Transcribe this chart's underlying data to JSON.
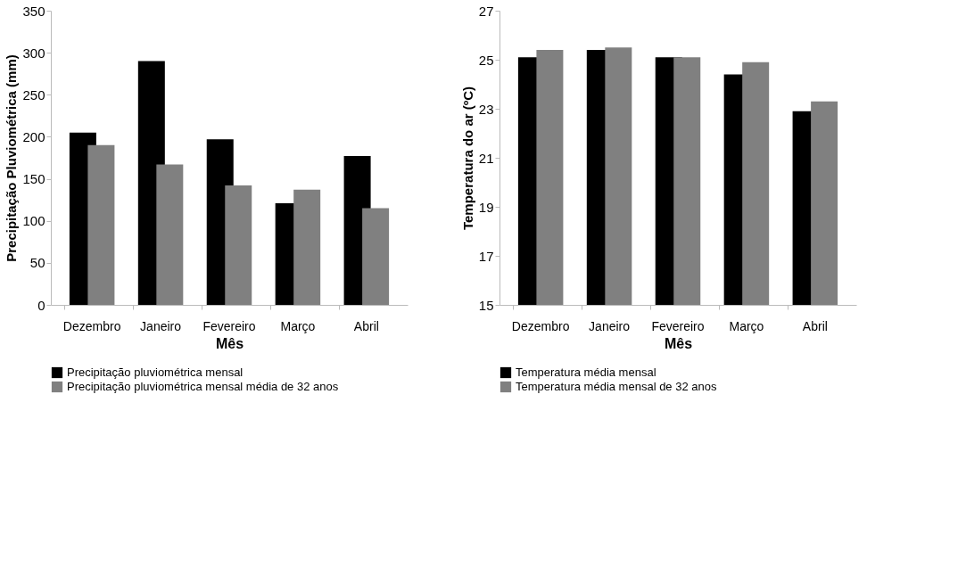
{
  "chart_data": [
    {
      "type": "bar",
      "xlabel": "Mês",
      "ylabel": "Precipitação Pluviométrica (mm)",
      "categories": [
        "Dezembro",
        "Janeiro",
        "Fevereiro",
        "Março",
        "Abril"
      ],
      "series": [
        {
          "name": "Precipitação pluviométrica mensal",
          "color": "#000000",
          "values": [
            205,
            290,
            197,
            121,
            177
          ]
        },
        {
          "name": "Precipitação pluviométrica mensal média de 32 anos",
          "color": "#808080",
          "values": [
            190,
            167,
            142,
            137,
            115
          ]
        }
      ],
      "ylim": [
        0,
        350
      ],
      "yticks": [
        0,
        50,
        100,
        150,
        200,
        250,
        300,
        350
      ],
      "grid": false,
      "legend": "bottom"
    },
    {
      "type": "bar",
      "xlabel": "Mês",
      "ylabel": "Temperatura do ar  (ºC)",
      "categories": [
        "Dezembro",
        "Janeiro",
        "Fevereiro",
        "Março",
        "Abril"
      ],
      "series": [
        {
          "name": "Temperatura média mensal",
          "color": "#000000",
          "values": [
            25.1,
            25.4,
            25.1,
            24.4,
            22.9
          ]
        },
        {
          "name": "Temperatura média mensal de 32 anos",
          "color": "#808080",
          "values": [
            25.4,
            25.5,
            25.1,
            24.9,
            23.3
          ]
        }
      ],
      "ylim": [
        15,
        27
      ],
      "yticks": [
        15,
        17,
        19,
        21,
        23,
        25,
        27
      ],
      "grid": false,
      "legend": "bottom"
    }
  ]
}
